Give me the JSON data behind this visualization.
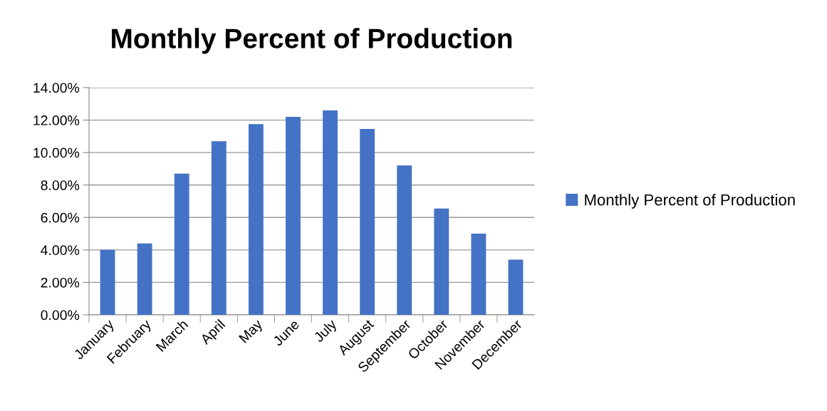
{
  "chart_data": {
    "type": "bar",
    "title": "Monthly Percent of Production",
    "categories": [
      "January",
      "February",
      "March",
      "April",
      "May",
      "June",
      "July",
      "August",
      "September",
      "October",
      "November",
      "December"
    ],
    "series": [
      {
        "name": "Monthly Percent of Production",
        "color": "#4472c4",
        "values": [
          4.0,
          4.4,
          8.7,
          10.7,
          11.75,
          12.2,
          12.6,
          11.45,
          9.2,
          6.55,
          5.0,
          3.4
        ]
      }
    ],
    "ylim": [
      0,
      14
    ],
    "yticks": [
      {
        "value": 0,
        "label": "0.00%"
      },
      {
        "value": 2,
        "label": "2.00%"
      },
      {
        "value": 4,
        "label": "4.00%"
      },
      {
        "value": 6,
        "label": "6.00%"
      },
      {
        "value": 8,
        "label": "8.00%"
      },
      {
        "value": 10,
        "label": "10.00%"
      },
      {
        "value": 12,
        "label": "12.00%"
      },
      {
        "value": 14,
        "label": "14.00%"
      }
    ],
    "grid": "y",
    "legend": "right"
  }
}
